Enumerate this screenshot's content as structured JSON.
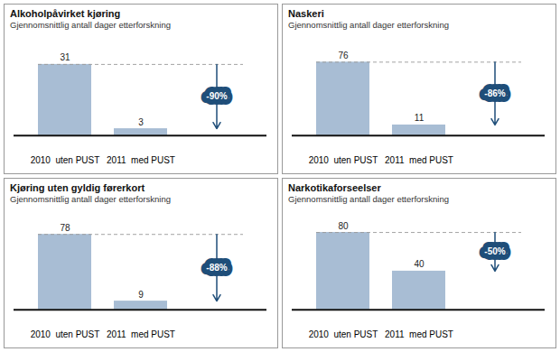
{
  "chart_data": [
    {
      "type": "bar",
      "title": "Alkoholpåvirket kjøring",
      "subtitle": "Gjennomsnittlig antall dager etterforskning",
      "categories": [
        "2010  uten PUST",
        "2011  med PUST"
      ],
      "values": [
        31,
        3
      ],
      "color": "#a8bdd4",
      "ylim": [
        -5.6,
        40
      ],
      "data_labels": true,
      "tick_labels": "x",
      "grid": false,
      "annotations": [
        "-90%"
      ]
    },
    {
      "type": "bar",
      "title": "Naskeri",
      "subtitle": "Gjennomsnittlig antall dager etterforskning",
      "categories": [
        "2010  uten PUST",
        "2011  med PUST"
      ],
      "values": [
        76,
        11
      ],
      "color": "#a8bdd4",
      "ylim": [
        -13.3,
        95
      ],
      "data_labels": true,
      "tick_labels": "x",
      "grid": false,
      "annotations": [
        "-86%"
      ]
    },
    {
      "type": "bar",
      "title": "Kjøring uten gyldig førerkort",
      "subtitle": "Gjennomsnittlig antall dager etterforskning",
      "categories": [
        "2010  uten PUST",
        "2011  med PUST"
      ],
      "values": [
        78,
        9
      ],
      "color": "#a8bdd4",
      "ylim": [
        -13.3,
        95
      ],
      "data_labels": true,
      "tick_labels": "x",
      "grid": false,
      "annotations": [
        "-88%"
      ]
    },
    {
      "type": "bar",
      "title": "Narkotikaforseelser",
      "subtitle": "Gjennomsnittlig antall dager etterforskning",
      "categories": [
        "2010  uten PUST",
        "2011  med PUST"
      ],
      "values": [
        80,
        40
      ],
      "color": "#a8bdd4",
      "ylim": [
        -13.3,
        95
      ],
      "data_labels": true,
      "tick_labels": "x",
      "grid": false,
      "annotations": [
        "-50%"
      ]
    }
  ]
}
